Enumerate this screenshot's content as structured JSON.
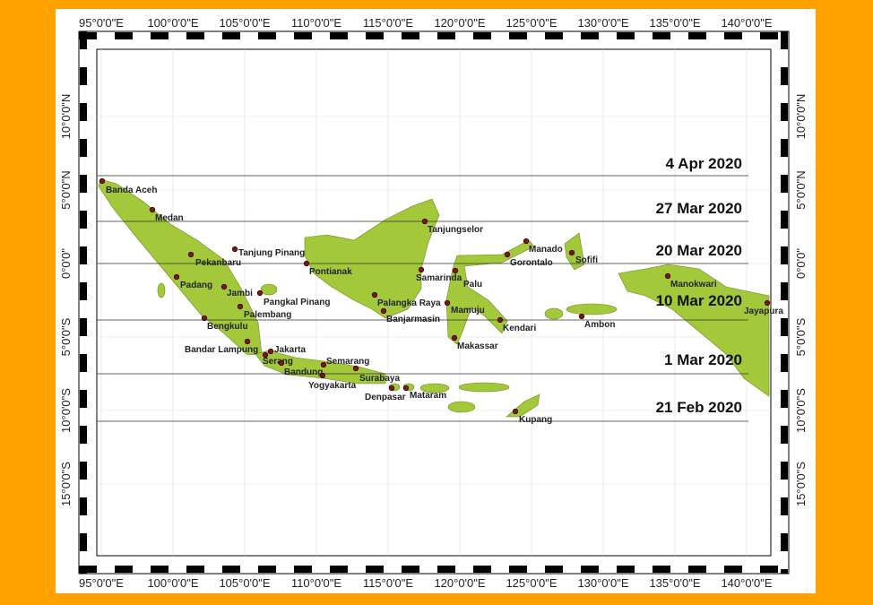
{
  "map": {
    "lon_ticks": [
      {
        "value": 95,
        "label": "95°0'0\"E"
      },
      {
        "value": 100,
        "label": "100°0'0\"E"
      },
      {
        "value": 105,
        "label": "105°0'0\"E"
      },
      {
        "value": 110,
        "label": "110°0'0\"E"
      },
      {
        "value": 115,
        "label": "115°0'0\"E"
      },
      {
        "value": 120,
        "label": "120°0'0\"E"
      },
      {
        "value": 125,
        "label": "125°0'0\"E"
      },
      {
        "value": 130,
        "label": "130°0'0\"E"
      },
      {
        "value": 135,
        "label": "135°0'0\"E"
      },
      {
        "value": 140,
        "label": "140°0'0\"E"
      }
    ],
    "lat_ticks": [
      {
        "value": 10,
        "label": "10°0'0\"N"
      },
      {
        "value": 5,
        "label": "5°0'0\"N"
      },
      {
        "value": 0,
        "label": "0°0'0\""
      },
      {
        "value": -5,
        "label": "5°0'0\"S"
      },
      {
        "value": -10,
        "label": "10°0'0\"S"
      },
      {
        "value": -15,
        "label": "15°0'0\"S"
      }
    ],
    "dates": [
      "4 Apr 2020",
      "27 Mar 2020",
      "20 Mar 2020",
      "10 Mar 2020",
      "1 Mar 2020",
      "21 Feb 2020"
    ],
    "cities": [
      "Banda Aceh",
      "Medan",
      "Pekanbaru",
      "Tanjung Pinang",
      "Padang",
      "Jambi",
      "Pangkal Pinang",
      "Palembang",
      "Bengkulu",
      "Bandar Lampung",
      "Jakarta",
      "Serang",
      "Bandung",
      "Semarang",
      "Yogyakarta",
      "Surabaya",
      "Denpasar",
      "Mataram",
      "Pontianak",
      "Palangka Raya",
      "Banjarmasin",
      "Tanjungselor",
      "Samarinda",
      "Palu",
      "Mamuju",
      "Makassar",
      "Kendari",
      "Manado",
      "Gorontalo",
      "Sofifi",
      "Manokwari",
      "Jayapura",
      "Ambon",
      "Kupang"
    ]
  }
}
